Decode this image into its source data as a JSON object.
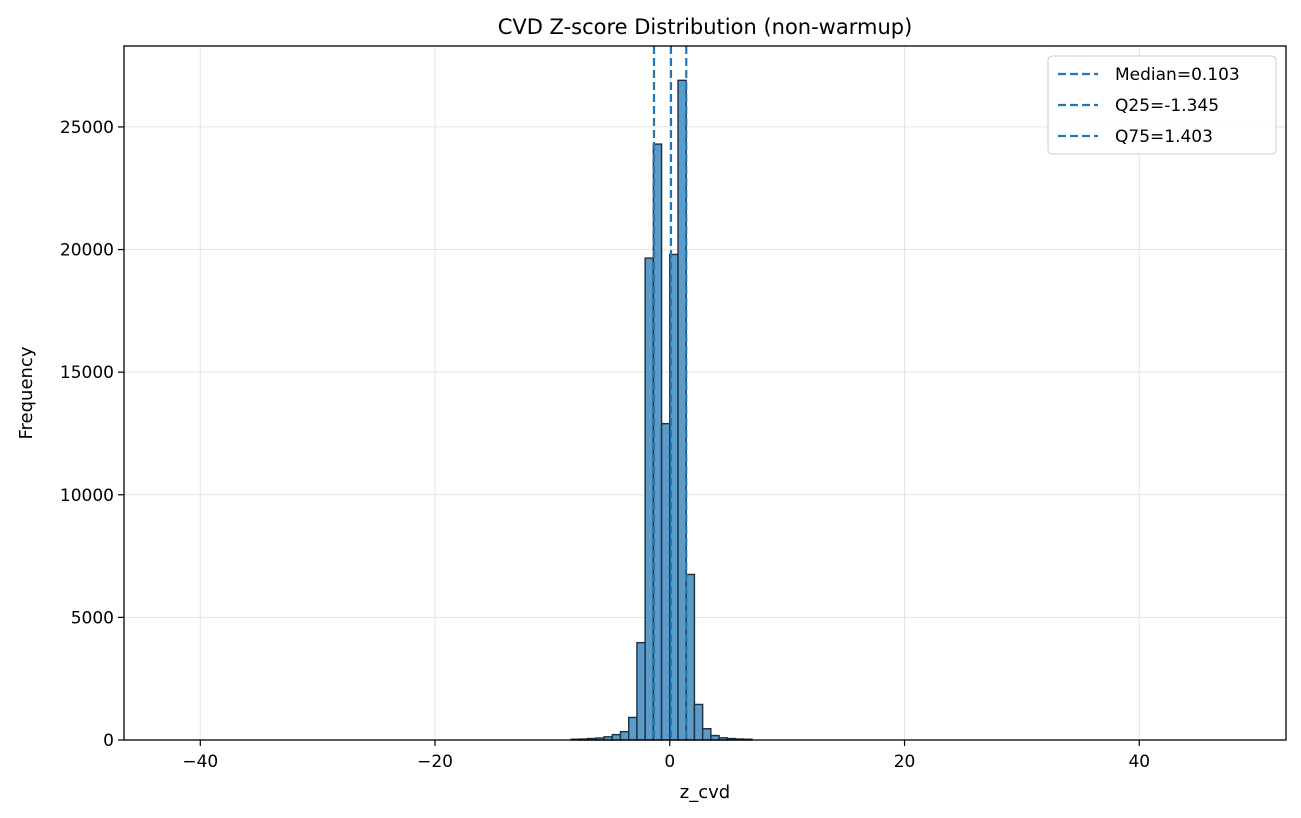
{
  "chart_data": {
    "type": "bar",
    "title": "CVD Z-score Distribution (non-warmup)",
    "xlabel": "z_cvd",
    "ylabel": "Frequency",
    "xlim": [
      -46.5,
      52.5
    ],
    "ylim": [
      0,
      28300
    ],
    "xticks": [
      -40,
      -20,
      0,
      20,
      40
    ],
    "xtick_labels": [
      "−40",
      "−20",
      "0",
      "20",
      "40"
    ],
    "yticks": [
      0,
      5000,
      10000,
      15000,
      20000,
      25000
    ],
    "ytick_labels": [
      "0",
      "5000",
      "10000",
      "15000",
      "20000",
      "25000"
    ],
    "grid": true,
    "legend_position": "top-right",
    "bin_width": 0.7,
    "bins": [
      {
        "x0": -8.4,
        "count": 30
      },
      {
        "x0": -7.7,
        "count": 40
      },
      {
        "x0": -7.0,
        "count": 60
      },
      {
        "x0": -6.3,
        "count": 80
      },
      {
        "x0": -5.6,
        "count": 130
      },
      {
        "x0": -4.9,
        "count": 220
      },
      {
        "x0": -4.2,
        "count": 340
      },
      {
        "x0": -3.5,
        "count": 920
      },
      {
        "x0": -2.8,
        "count": 3970
      },
      {
        "x0": -2.1,
        "count": 19650
      },
      {
        "x0": -1.4,
        "count": 24300
      },
      {
        "x0": -0.7,
        "count": 12900
      },
      {
        "x0": 0.0,
        "count": 19800
      },
      {
        "x0": 0.7,
        "count": 26900
      },
      {
        "x0": 1.4,
        "count": 6750
      },
      {
        "x0": 2.1,
        "count": 1450
      },
      {
        "x0": 2.8,
        "count": 460
      },
      {
        "x0": 3.5,
        "count": 180
      },
      {
        "x0": 4.2,
        "count": 90
      },
      {
        "x0": 4.9,
        "count": 60
      },
      {
        "x0": 5.6,
        "count": 40
      },
      {
        "x0": 6.3,
        "count": 30
      }
    ],
    "reference_lines": [
      {
        "label": "Median=0.103",
        "x": 0.103
      },
      {
        "label": "Q25=-1.345",
        "x": -1.345
      },
      {
        "label": "Q75=1.403",
        "x": 1.403
      }
    ],
    "colors": {
      "bar_fill": "#5b9bc9",
      "bar_edge": "#1f2f3f",
      "reference_line": "#1f77b4",
      "grid": "#e3e3e3",
      "axis": "#000000"
    }
  }
}
